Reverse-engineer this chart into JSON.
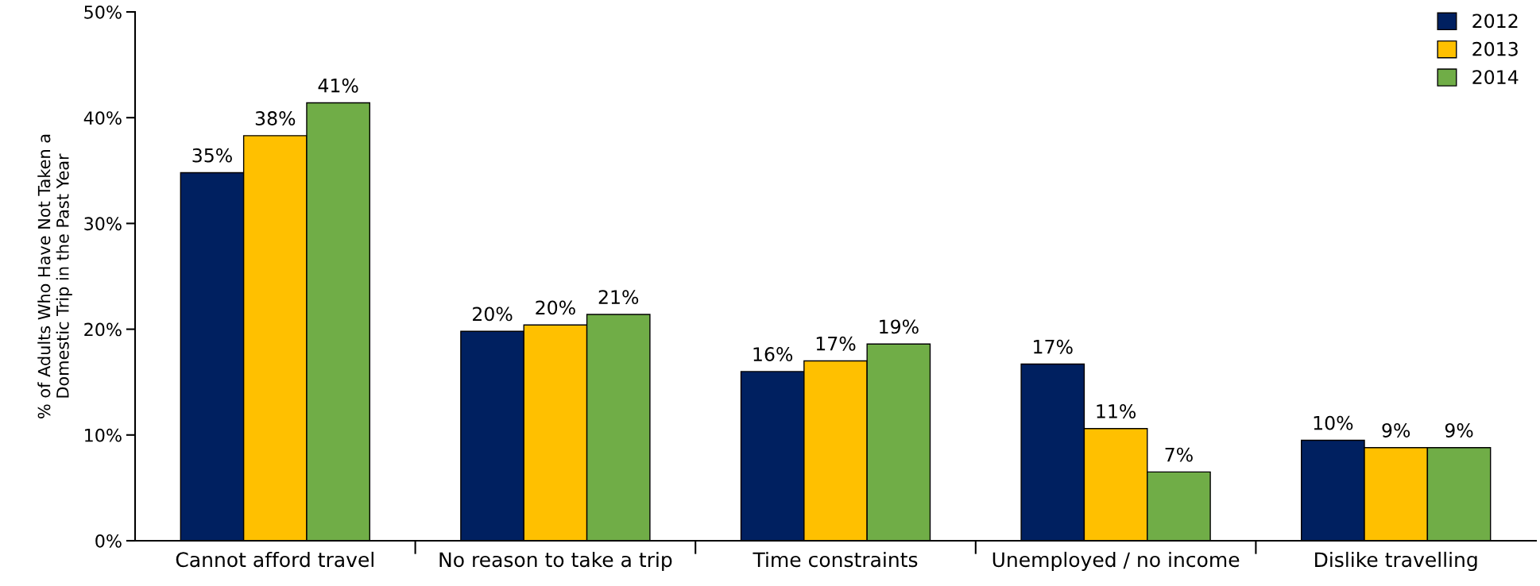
{
  "chart_data": {
    "type": "bar",
    "ylabel": "% of Adults Who Have Not Taken a\nDomestic Trip in the Past Year",
    "categories": [
      "Cannot afford travel",
      "No reason to take a trip",
      "Time constraints",
      "Unemployed / no income",
      "Dislike travelling"
    ],
    "series": [
      {
        "name": "2012",
        "color": "#002060",
        "values": [
          34.8,
          19.8,
          16.0,
          16.7,
          9.5
        ],
        "value_labels": [
          "35%",
          "20%",
          "16%",
          "17%",
          "10%"
        ]
      },
      {
        "name": "2013",
        "color": "#ffc000",
        "values": [
          38.3,
          20.4,
          17.0,
          10.6,
          8.8
        ],
        "value_labels": [
          "38%",
          "20%",
          "17%",
          "11%",
          "9%"
        ]
      },
      {
        "name": "2014",
        "color": "#70ad47",
        "values": [
          41.4,
          21.4,
          18.6,
          6.5,
          8.8
        ],
        "value_labels": [
          "41%",
          "21%",
          "19%",
          "7%",
          "9%"
        ]
      }
    ],
    "ylim": [
      0,
      50
    ],
    "yticks": [
      {
        "value": 0,
        "label": "0%"
      },
      {
        "value": 10,
        "label": "10%"
      },
      {
        "value": 20,
        "label": "20%"
      },
      {
        "value": 30,
        "label": "30%"
      },
      {
        "value": 40,
        "label": "40%"
      },
      {
        "value": 50,
        "label": "50%"
      }
    ],
    "legend": "top right",
    "grid": false
  }
}
